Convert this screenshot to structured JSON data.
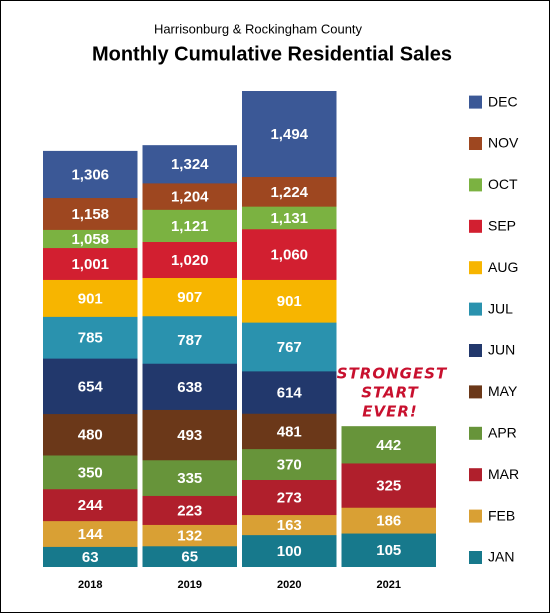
{
  "chart_data": {
    "type": "bar",
    "subtitle": "Harrisonburg & Rockingham County",
    "title": "Monthly Cumulative Residential Sales",
    "categories": [
      "2018",
      "2019",
      "2020",
      "2021"
    ],
    "series": [
      {
        "name": "JAN",
        "color": "#17798c",
        "values": [
          63,
          65,
          100,
          105
        ],
        "value_labels": [
          "63",
          "65",
          "100",
          "105"
        ]
      },
      {
        "name": "FEB",
        "color": "#d9a034",
        "values": [
          144,
          132,
          163,
          186
        ],
        "value_labels": [
          "144",
          "132",
          "163",
          "186"
        ]
      },
      {
        "name": "MAR",
        "color": "#b01f2c",
        "values": [
          244,
          223,
          273,
          325
        ],
        "value_labels": [
          "244",
          "223",
          "273",
          "325"
        ]
      },
      {
        "name": "APR",
        "color": "#67943a",
        "values": [
          350,
          335,
          370,
          442
        ],
        "value_labels": [
          "350",
          "335",
          "370",
          "442"
        ]
      },
      {
        "name": "MAY",
        "color": "#6b3819",
        "values": [
          480,
          493,
          481,
          null
        ],
        "value_labels": [
          "480",
          "493",
          "481",
          null
        ]
      },
      {
        "name": "JUN",
        "color": "#22386c",
        "values": [
          654,
          638,
          614,
          null
        ],
        "value_labels": [
          "654",
          "638",
          "614",
          null
        ]
      },
      {
        "name": "JUL",
        "color": "#2a92ae",
        "values": [
          785,
          787,
          767,
          null
        ],
        "value_labels": [
          "785",
          "787",
          "767",
          null
        ]
      },
      {
        "name": "AUG",
        "color": "#f7b500",
        "values": [
          901,
          907,
          901,
          null
        ],
        "value_labels": [
          "901",
          "907",
          "901",
          null
        ]
      },
      {
        "name": "SEP",
        "color": "#d21f30",
        "values": [
          1001,
          1020,
          1060,
          null
        ],
        "value_labels": [
          "1,001",
          "1,020",
          "1,060",
          null
        ]
      },
      {
        "name": "OCT",
        "color": "#7bb241",
        "values": [
          1058,
          1121,
          1131,
          null
        ],
        "value_labels": [
          "1,058",
          "1,121",
          "1,131",
          null
        ]
      },
      {
        "name": "NOV",
        "color": "#9e4720",
        "values": [
          1158,
          1204,
          1224,
          null
        ],
        "value_labels": [
          "1,158",
          "1,204",
          "1,224",
          null
        ]
      },
      {
        "name": "DEC",
        "color": "#3b5896",
        "values": [
          1306,
          1324,
          1494,
          null
        ],
        "value_labels": [
          "1,306",
          "1,324",
          "1,494",
          null
        ]
      }
    ],
    "annotation": [
      "STRONGEST",
      "START",
      "EVER!"
    ]
  }
}
